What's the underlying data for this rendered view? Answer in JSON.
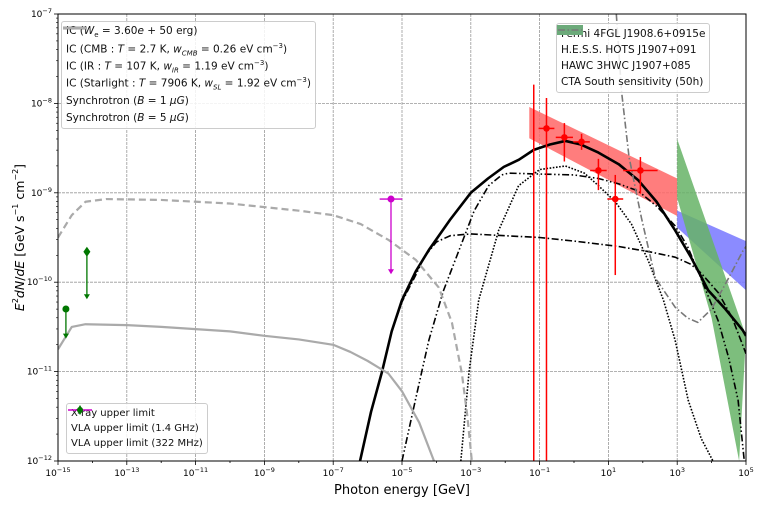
{
  "chart_data": {
    "type": "line",
    "xlabel": "Photon energy [GeV]",
    "ylabel_html": "<tspan font-style='italic'>E</tspan><tspan dy='-6' font-size='8'>2</tspan><tspan dy='6' font-style='italic'>dN</tspan>/<tspan font-style='italic'>dE</tspan> [GeV s<tspan dy='-6' font-size='8'>−1</tspan><tspan dy='6'> cm</tspan><tspan dy='-6' font-size='8'>−2</tspan><tspan dy='6'>]</tspan>",
    "ylabel": "E2dN/dE [GeV s-1 cm-2]",
    "x_scale": "log",
    "y_scale": "log",
    "xlim_log10": [
      -15,
      5
    ],
    "ylim_log10": [
      -12,
      -7
    ],
    "x_tick_exponents": [
      -15,
      -13,
      -11,
      -9,
      -7,
      -5,
      -3,
      -1,
      1,
      3,
      5
    ],
    "y_tick_exponents": [
      -12,
      -11,
      -10,
      -9,
      -8,
      -7
    ],
    "grid": true,
    "note": "curve points given as [log10 E (GeV), log10 E2dN/dE (GeV s-1 cm-2)]",
    "series": [
      {
        "id": "ic_total",
        "label_html": "IC (<i>W</i><sub>e</sub> = 3.60<i>e</i> + 50 erg)",
        "color": "#000000",
        "style": "solid",
        "points": [
          [
            -6.22,
            -12
          ],
          [
            -5.9,
            -11.45
          ],
          [
            -5.58,
            -11
          ],
          [
            -5.3,
            -10.55
          ],
          [
            -5,
            -10.2
          ],
          [
            -4.6,
            -9.88
          ],
          [
            -4.22,
            -9.64
          ],
          [
            -3.6,
            -9.3
          ],
          [
            -3,
            -9
          ],
          [
            -2.5,
            -8.84
          ],
          [
            -2.04,
            -8.71
          ],
          [
            -1.6,
            -8.63
          ],
          [
            -1.17,
            -8.52
          ],
          [
            -0.7,
            -8.46
          ],
          [
            -0.25,
            -8.42
          ],
          [
            0.2,
            -8.46
          ],
          [
            0.71,
            -8.55
          ],
          [
            1.3,
            -8.68
          ],
          [
            1.87,
            -8.86
          ],
          [
            2.4,
            -9.1
          ],
          [
            2.94,
            -9.42
          ],
          [
            3.4,
            -9.72
          ],
          [
            3.9,
            -10.09
          ],
          [
            4.4,
            -10.3
          ],
          [
            4.91,
            -10.54
          ],
          [
            5,
            -10.6
          ]
        ]
      },
      {
        "id": "ic_cmb",
        "label_html": "IC (CMB : <i>T</i> = 2.7 K, <i>w</i><sub><i>CMB</i></sub> = 0.26 eV cm<sup>−3</sup>)",
        "color": "#000000",
        "style": "dashdot",
        "points": [
          [
            -6.22,
            -12
          ],
          [
            -5.9,
            -11.45
          ],
          [
            -5.58,
            -11
          ],
          [
            -5.3,
            -10.55
          ],
          [
            -5,
            -10.22
          ],
          [
            -4.6,
            -9.92
          ],
          [
            -4.36,
            -9.72
          ],
          [
            -4,
            -9.55
          ],
          [
            -3.6,
            -9.48
          ],
          [
            -3,
            -9.46
          ],
          [
            -2,
            -9.48
          ],
          [
            -1,
            -9.5
          ],
          [
            0,
            -9.54
          ],
          [
            1.29,
            -9.6
          ],
          [
            2.2,
            -9.66
          ],
          [
            2.94,
            -9.72
          ],
          [
            3.4,
            -9.8
          ],
          [
            3.7,
            -9.9
          ],
          [
            4.2,
            -10.12
          ],
          [
            4.6,
            -10.4
          ],
          [
            5,
            -10.8
          ]
        ]
      },
      {
        "id": "ic_ir",
        "label_html": "IC (IR : <i>T</i> = 107 K, <i>w</i><sub><i>IR</i></sub> = 1.19 eV cm<sup>−3</sup>)",
        "color": "#000000",
        "style": "dashdotdot",
        "points": [
          [
            -5,
            -12
          ],
          [
            -4.6,
            -11.3
          ],
          [
            -4.22,
            -10.65
          ],
          [
            -3.8,
            -10.1
          ],
          [
            -3.35,
            -9.65
          ],
          [
            -2.9,
            -9.2
          ],
          [
            -2.48,
            -8.92
          ],
          [
            -2.1,
            -8.8
          ],
          [
            -1.9,
            -8.78
          ],
          [
            -1.03,
            -8.79
          ],
          [
            0,
            -8.8
          ],
          [
            0.71,
            -8.84
          ],
          [
            1.3,
            -8.9
          ],
          [
            1.87,
            -8.98
          ],
          [
            2.4,
            -9.15
          ],
          [
            2.94,
            -9.37
          ],
          [
            3.3,
            -9.6
          ],
          [
            3.6,
            -9.87
          ],
          [
            4.19,
            -10.43
          ],
          [
            4.5,
            -10.85
          ],
          [
            4.77,
            -11.32
          ],
          [
            4.95,
            -12
          ]
        ]
      },
      {
        "id": "ic_starlight",
        "label_html": "IC (Starlight : <i>T</i> = 7906 K, <i>w</i><sub><i>SL</i></sub> = 1.92 eV cm<sup>−3</sup>)",
        "color": "#000000",
        "style": "dotted",
        "points": [
          [
            -3.29,
            -12
          ],
          [
            -3.05,
            -11
          ],
          [
            -2.77,
            -10.2
          ],
          [
            -2.19,
            -9.42
          ],
          [
            -1.61,
            -8.92
          ],
          [
            -1,
            -8.74
          ],
          [
            -0.25,
            -8.7
          ],
          [
            0.3,
            -8.78
          ],
          [
            0.71,
            -8.92
          ],
          [
            1.2,
            -9.1
          ],
          [
            1.67,
            -9.35
          ],
          [
            2.16,
            -9.76
          ],
          [
            2.6,
            -10.2
          ],
          [
            2.94,
            -10.65
          ],
          [
            3.32,
            -11.32
          ],
          [
            3.7,
            -11.75
          ],
          [
            4.04,
            -12
          ]
        ]
      },
      {
        "id": "sync_b1",
        "label_html": "Synchrotron (<i>B</i> = 1 <i>μG</i>)",
        "color": "#aaaaaa",
        "style": "solid",
        "points": [
          [
            -15,
            -10.75
          ],
          [
            -14.6,
            -10.5
          ],
          [
            -14.2,
            -10.47
          ],
          [
            -13,
            -10.48
          ],
          [
            -12,
            -10.5
          ],
          [
            -10,
            -10.55
          ],
          [
            -9,
            -10.6
          ],
          [
            -8,
            -10.64
          ],
          [
            -7,
            -10.7
          ],
          [
            -6.5,
            -10.78
          ],
          [
            -6,
            -10.88
          ],
          [
            -5.4,
            -11.02
          ],
          [
            -5,
            -11.22
          ],
          [
            -4.5,
            -11.57
          ],
          [
            -4.07,
            -12
          ]
        ]
      },
      {
        "id": "sync_b5",
        "label_html": "Synchrotron (<i>B</i> = 5 <i>μG</i>)",
        "color": "#aaaaaa",
        "style": "dashed",
        "points": [
          [
            -15,
            -9.5
          ],
          [
            -14.6,
            -9.25
          ],
          [
            -14.2,
            -9.1
          ],
          [
            -13.6,
            -9.07
          ],
          [
            -12,
            -9.08
          ],
          [
            -10,
            -9.12
          ],
          [
            -9,
            -9.16
          ],
          [
            -8,
            -9.2
          ],
          [
            -7,
            -9.25
          ],
          [
            -6.2,
            -9.35
          ],
          [
            -5.38,
            -9.53
          ],
          [
            -4.6,
            -9.75
          ],
          [
            -3.93,
            -10.06
          ],
          [
            -3.55,
            -10.45
          ],
          [
            -3.26,
            -11.02
          ],
          [
            -3.1,
            -11.5
          ],
          [
            -2.97,
            -12
          ]
        ]
      },
      {
        "id": "cta_south",
        "label_html": "CTA South sensitivity (50h)",
        "color": "#777777",
        "style": "dashdot",
        "points": [
          [
            1.23,
            -7
          ],
          [
            1.38,
            -7.86
          ],
          [
            1.6,
            -8.6
          ],
          [
            1.96,
            -9.28
          ],
          [
            2.36,
            -9.95
          ],
          [
            2.94,
            -10.28
          ],
          [
            3.3,
            -10.4
          ],
          [
            3.6,
            -10.45
          ],
          [
            4,
            -10.3
          ],
          [
            4.5,
            -9.95
          ],
          [
            4.91,
            -9.65
          ],
          [
            5,
            -9.6
          ]
        ]
      }
    ],
    "bands": [
      {
        "id": "fermi",
        "label": "Fermi 4FGL J1908.6+0915e",
        "color": "#ff6666",
        "upper": [
          [
            -1.3,
            -8.04
          ],
          [
            3,
            -8.84
          ]
        ],
        "lower": [
          [
            -1.3,
            -8.39
          ],
          [
            3,
            -9.26
          ]
        ]
      },
      {
        "id": "hess",
        "label": "H.E.S.S. HOTS J1907+091",
        "color": "#7777ff",
        "upper": [
          [
            3,
            -9.2
          ],
          [
            5,
            -9.54
          ]
        ],
        "lower": [
          [
            3,
            -9.39
          ],
          [
            5,
            -10.09
          ]
        ]
      },
      {
        "id": "hawc",
        "label": "HAWC 3HWC J1907+085",
        "color": "#66b366",
        "upper": [
          [
            3,
            -8.4
          ],
          [
            4,
            -9.5
          ],
          [
            5,
            -10.6
          ]
        ],
        "lower": [
          [
            3,
            -9.06
          ],
          [
            4,
            -10.4
          ],
          [
            4.8,
            -12
          ]
        ]
      }
    ],
    "fermi_points": [
      {
        "log_e": -1.17,
        "log_f": null,
        "log_f_hi": -7.79,
        "log_f_lo": -12,
        "dex_x": 0
      },
      {
        "log_e": -0.8,
        "log_f": -8.28,
        "log_f_hi": -7.94,
        "log_f_lo": -12,
        "dex_x": 0.23
      },
      {
        "log_e": -0.28,
        "log_f": -8.38,
        "log_f_hi": -8.22,
        "log_f_lo": -8.65,
        "dex_x": 0.25
      },
      {
        "log_e": 0.22,
        "log_f": -8.43,
        "log_f_hi": -8.34,
        "log_f_lo": -8.52,
        "dex_x": 0.24
      },
      {
        "log_e": 0.71,
        "log_f": -8.75,
        "log_f_hi": -8.62,
        "log_f_lo": -8.97,
        "dex_x": 0.24
      },
      {
        "log_e": 1.2,
        "log_f": -9.07,
        "log_f_hi": -8.8,
        "log_f_lo": -9.92,
        "dex_x": 0.23
      },
      {
        "log_e": 1.93,
        "log_f": -8.75,
        "log_f_hi": -8.6,
        "log_f_lo": -9.01,
        "dex_x": 0.5
      }
    ],
    "upper_limits": [
      {
        "id": "xray",
        "label": "X-ray upper limit",
        "color": "#cc00cc",
        "marker": "circle",
        "log_e": -5.32,
        "log_f": -9.07,
        "dex_x": 0.33,
        "arrow_to": -9.9
      },
      {
        "id": "vla_14",
        "label": "VLA upper limit (1.4 GHz)",
        "color": "#007700",
        "marker": "diamond",
        "log_e": -14.16,
        "log_f": -9.66,
        "dex_x": 0,
        "arrow_to": -10.18
      },
      {
        "id": "vla_322",
        "label": "VLA upper limit (322 MHz)",
        "color": "#007700",
        "marker": "circle",
        "log_e": -14.77,
        "log_f": -10.3,
        "dex_x": 0,
        "arrow_to": -10.62
      }
    ]
  }
}
